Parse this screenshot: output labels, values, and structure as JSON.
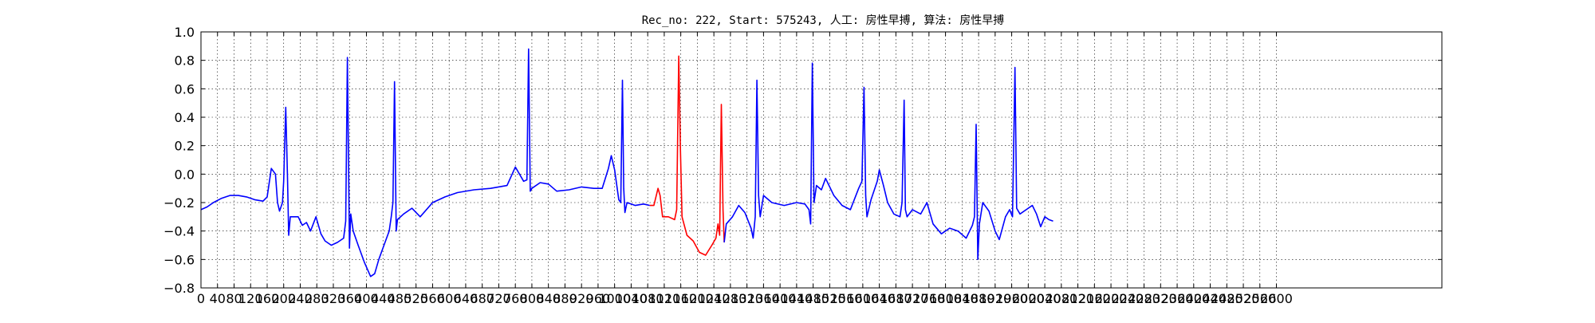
{
  "chart_data": {
    "type": "line",
    "title": "Rec_no: 222, Start: 575243, 人工: 房性早搏, 算法: 房性早搏",
    "xlabel": "",
    "ylabel": "",
    "xlim": [
      0,
      3000
    ],
    "ylim": [
      -0.8,
      1.0
    ],
    "grid": true,
    "x_ticks": [
      0,
      40,
      80,
      120,
      160,
      200,
      240,
      280,
      320,
      360,
      400,
      440,
      480,
      520,
      560,
      600,
      640,
      680,
      720,
      760,
      800,
      840,
      880,
      920,
      960,
      1000,
      1040,
      1080,
      1120,
      1160,
      1200,
      1240,
      1280,
      1320,
      1360,
      1400,
      1440,
      1480,
      1520,
      1560,
      1600,
      1640,
      1680,
      1720,
      1760,
      1800,
      1840,
      1880,
      1920,
      1960,
      2000,
      2040,
      2080,
      2120,
      2160,
      2200,
      2240,
      2280,
      2320,
      2360,
      2400,
      2440,
      2480,
      2520,
      2560,
      2600
    ],
    "x_tick_labels": [
      "0",
      "40",
      "80",
      "120",
      "160",
      "200",
      "240",
      "280",
      "320",
      "360",
      "400",
      "440",
      "480",
      "520",
      "560",
      "600",
      "640",
      "680",
      "720",
      "760",
      "800",
      "840",
      "880",
      "920",
      "960",
      "1000",
      "1040",
      "1080",
      "1120",
      "1160",
      "1200",
      "1240",
      "1280",
      "1320",
      "1360",
      "1400",
      "1440",
      "1480",
      "1520",
      "1560",
      "1600",
      "1640",
      "1680",
      "1720",
      "1760",
      "1800",
      "1840",
      "1880",
      "1920",
      "1960",
      "2000",
      "2040",
      "2080",
      "2120",
      "2160",
      "2200",
      "2240",
      "2280",
      "2320",
      "2360",
      "2400",
      "2440",
      "2480",
      "2520",
      "2560",
      "2600"
    ],
    "y_ticks": [
      1.0,
      0.8,
      0.6,
      0.4,
      0.2,
      0.0,
      -0.2,
      -0.4,
      -0.6,
      -0.8
    ],
    "y_tick_labels": [
      "1.0",
      "0.8",
      "0.6",
      "0.4",
      "0.2",
      "0.0",
      "−0.2",
      "−0.4",
      "−0.6",
      "−0.8"
    ],
    "series": [
      {
        "color": "#0000ff",
        "points": [
          [
            0,
            -0.25
          ],
          [
            15,
            -0.23
          ],
          [
            30,
            -0.2
          ],
          [
            50,
            -0.17
          ],
          [
            70,
            -0.15
          ],
          [
            90,
            -0.15
          ],
          [
            110,
            -0.16
          ],
          [
            130,
            -0.18
          ],
          [
            150,
            -0.19
          ],
          [
            160,
            -0.16
          ],
          [
            170,
            0.04
          ],
          [
            180,
            0.0
          ],
          [
            185,
            -0.2
          ],
          [
            190,
            -0.26
          ],
          [
            197,
            -0.2
          ],
          [
            200,
            -0.05
          ],
          [
            205,
            0.47
          ],
          [
            209,
            0.0
          ],
          [
            212,
            -0.43
          ],
          [
            216,
            -0.3
          ],
          [
            235,
            -0.3
          ],
          [
            245,
            -0.36
          ],
          [
            255,
            -0.34
          ],
          [
            265,
            -0.4
          ],
          [
            278,
            -0.3
          ],
          [
            290,
            -0.42
          ],
          [
            300,
            -0.47
          ],
          [
            315,
            -0.5
          ],
          [
            330,
            -0.48
          ],
          [
            345,
            -0.45
          ],
          [
            350,
            -0.33
          ],
          [
            354,
            0.82
          ],
          [
            357,
            0.0
          ],
          [
            359,
            -0.52
          ],
          [
            362,
            -0.28
          ],
          [
            368,
            -0.4
          ],
          [
            380,
            -0.5
          ],
          [
            395,
            -0.62
          ],
          [
            410,
            -0.72
          ],
          [
            420,
            -0.7
          ],
          [
            430,
            -0.6
          ],
          [
            445,
            -0.48
          ],
          [
            455,
            -0.4
          ],
          [
            460,
            -0.3
          ],
          [
            464,
            -0.2
          ],
          [
            468,
            0.65
          ],
          [
            472,
            -0.4
          ],
          [
            475,
            -0.32
          ],
          [
            490,
            -0.28
          ],
          [
            510,
            -0.24
          ],
          [
            530,
            -0.3
          ],
          [
            560,
            -0.2
          ],
          [
            590,
            -0.16
          ],
          [
            620,
            -0.13
          ],
          [
            660,
            -0.11
          ],
          [
            700,
            -0.1
          ],
          [
            740,
            -0.08
          ],
          [
            760,
            0.05
          ],
          [
            770,
            0.0
          ],
          [
            780,
            -0.05
          ],
          [
            788,
            -0.04
          ],
          [
            792,
            0.88
          ],
          [
            796,
            -0.12
          ],
          [
            800,
            -0.1
          ],
          [
            820,
            -0.06
          ],
          [
            840,
            -0.07
          ],
          [
            860,
            -0.12
          ],
          [
            890,
            -0.11
          ],
          [
            920,
            -0.09
          ],
          [
            950,
            -0.1
          ],
          [
            970,
            -0.1
          ],
          [
            985,
            0.04
          ],
          [
            992,
            0.13
          ],
          [
            1000,
            0.03
          ],
          [
            1010,
            -0.18
          ],
          [
            1015,
            -0.2
          ],
          [
            1019,
            0.66
          ],
          [
            1022,
            -0.1
          ],
          [
            1025,
            -0.27
          ],
          [
            1030,
            -0.2
          ],
          [
            1050,
            -0.22
          ],
          [
            1070,
            -0.21
          ],
          [
            1085,
            -0.22
          ]
        ]
      },
      {
        "color": "#ff0000",
        "points": [
          [
            1085,
            -0.22
          ],
          [
            1095,
            -0.22
          ],
          [
            1105,
            -0.1
          ],
          [
            1110,
            -0.15
          ],
          [
            1116,
            -0.3
          ],
          [
            1130,
            -0.3
          ],
          [
            1145,
            -0.32
          ],
          [
            1150,
            -0.25
          ],
          [
            1155,
            0.83
          ],
          [
            1159,
            0.2
          ],
          [
            1163,
            -0.3
          ],
          [
            1175,
            -0.43
          ],
          [
            1190,
            -0.47
          ],
          [
            1205,
            -0.55
          ],
          [
            1220,
            -0.57
          ],
          [
            1235,
            -0.5
          ],
          [
            1245,
            -0.45
          ],
          [
            1250,
            -0.35
          ],
          [
            1254,
            -0.43
          ],
          [
            1258,
            0.49
          ],
          [
            1262,
            -0.25
          ],
          [
            1265,
            -0.48
          ]
        ]
      },
      {
        "color": "#0000ff",
        "points": [
          [
            1265,
            -0.48
          ],
          [
            1270,
            -0.35
          ],
          [
            1285,
            -0.3
          ],
          [
            1300,
            -0.22
          ],
          [
            1315,
            -0.27
          ],
          [
            1330,
            -0.38
          ],
          [
            1335,
            -0.45
          ],
          [
            1340,
            -0.3
          ],
          [
            1344,
            0.66
          ],
          [
            1348,
            -0.15
          ],
          [
            1352,
            -0.3
          ],
          [
            1360,
            -0.15
          ],
          [
            1380,
            -0.2
          ],
          [
            1410,
            -0.22
          ],
          [
            1440,
            -0.2
          ],
          [
            1460,
            -0.21
          ],
          [
            1470,
            -0.25
          ],
          [
            1474,
            -0.35
          ],
          [
            1478,
            0.78
          ],
          [
            1482,
            -0.2
          ],
          [
            1488,
            -0.08
          ],
          [
            1500,
            -0.11
          ],
          [
            1510,
            -0.03
          ],
          [
            1530,
            -0.15
          ],
          [
            1550,
            -0.22
          ],
          [
            1570,
            -0.25
          ],
          [
            1590,
            -0.1
          ],
          [
            1598,
            -0.05
          ],
          [
            1603,
            0.61
          ],
          [
            1607,
            -0.15
          ],
          [
            1610,
            -0.3
          ],
          [
            1620,
            -0.18
          ],
          [
            1635,
            -0.05
          ],
          [
            1640,
            0.03
          ],
          [
            1650,
            -0.08
          ],
          [
            1660,
            -0.2
          ],
          [
            1675,
            -0.28
          ],
          [
            1690,
            -0.3
          ],
          [
            1695,
            -0.2
          ],
          [
            1700,
            0.52
          ],
          [
            1703,
            -0.25
          ],
          [
            1707,
            -0.3
          ],
          [
            1720,
            -0.25
          ],
          [
            1740,
            -0.28
          ],
          [
            1755,
            -0.2
          ],
          [
            1770,
            -0.35
          ],
          [
            1790,
            -0.42
          ],
          [
            1810,
            -0.38
          ],
          [
            1830,
            -0.4
          ],
          [
            1850,
            -0.45
          ],
          [
            1865,
            -0.36
          ],
          [
            1870,
            -0.3
          ],
          [
            1874,
            0.35
          ],
          [
            1878,
            -0.6
          ],
          [
            1882,
            -0.35
          ],
          [
            1890,
            -0.2
          ],
          [
            1905,
            -0.26
          ],
          [
            1920,
            -0.4
          ],
          [
            1930,
            -0.46
          ],
          [
            1945,
            -0.3
          ],
          [
            1955,
            -0.25
          ],
          [
            1962,
            -0.3
          ],
          [
            1968,
            0.75
          ],
          [
            1972,
            -0.24
          ],
          [
            1980,
            -0.28
          ],
          [
            2000,
            -0.24
          ],
          [
            2010,
            -0.22
          ],
          [
            2020,
            -0.28
          ],
          [
            2030,
            -0.37
          ],
          [
            2040,
            -0.3
          ],
          [
            2050,
            -0.32
          ],
          [
            2060,
            -0.33
          ]
        ]
      }
    ]
  }
}
